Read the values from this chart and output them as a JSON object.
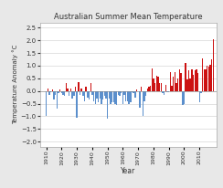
{
  "title": "Australian Summer Mean Temperature",
  "xlabel": "Year",
  "ylabel": "Temperature Anomaly °C",
  "ylim": [
    -2.2,
    2.7
  ],
  "yticks": [
    -2.0,
    -1.5,
    -1.0,
    -0.5,
    0.0,
    0.5,
    1.0,
    1.5,
    2.0,
    2.5
  ],
  "xtick_years": [
    1910,
    1920,
    1930,
    1940,
    1950,
    1960,
    1970,
    1980,
    1990,
    2000,
    2010
  ],
  "figure_bg": "#e8e8e8",
  "plot_bg": "#ffffff",
  "color_positive": "#cc1111",
  "color_negative": "#5b8fcc",
  "years": [
    1910,
    1911,
    1912,
    1913,
    1914,
    1915,
    1916,
    1917,
    1918,
    1919,
    1920,
    1921,
    1922,
    1923,
    1924,
    1925,
    1926,
    1927,
    1928,
    1929,
    1930,
    1931,
    1932,
    1933,
    1934,
    1935,
    1936,
    1937,
    1938,
    1939,
    1940,
    1941,
    1942,
    1943,
    1944,
    1945,
    1946,
    1947,
    1948,
    1949,
    1950,
    1951,
    1952,
    1953,
    1954,
    1955,
    1956,
    1957,
    1958,
    1959,
    1960,
    1961,
    1962,
    1963,
    1964,
    1965,
    1966,
    1967,
    1968,
    1969,
    1970,
    1971,
    1972,
    1973,
    1974,
    1975,
    1976,
    1977,
    1978,
    1979,
    1980,
    1981,
    1982,
    1983,
    1984,
    1985,
    1986,
    1987,
    1988,
    1989,
    1990,
    1991,
    1992,
    1993,
    1994,
    1995,
    1996,
    1997,
    1998,
    1999,
    2000,
    2001,
    2002,
    2003,
    2004,
    2005,
    2006,
    2007,
    2008,
    2009,
    2010,
    2011,
    2012,
    2013,
    2014,
    2015,
    2016,
    2017,
    2018,
    2019
  ],
  "values": [
    -1.0,
    0.1,
    -0.15,
    -0.05,
    0.05,
    -0.35,
    -0.15,
    -0.7,
    -0.1,
    0.05,
    -0.1,
    -0.15,
    -0.2,
    0.3,
    0.1,
    -0.2,
    0.1,
    -0.3,
    -0.2,
    0.15,
    -1.05,
    0.35,
    -0.15,
    0.1,
    -0.2,
    -0.4,
    0.15,
    -0.25,
    -0.35,
    0.3,
    -0.15,
    -0.4,
    -0.5,
    -0.3,
    -0.45,
    -0.3,
    -0.5,
    -0.35,
    -0.2,
    -0.3,
    -1.1,
    -0.3,
    -0.5,
    -0.45,
    -0.45,
    -0.5,
    -0.55,
    -0.15,
    -0.2,
    -0.1,
    -0.5,
    -0.15,
    -0.4,
    -0.4,
    -0.5,
    -0.45,
    -0.05,
    -0.1,
    -0.25,
    0.05,
    0.0,
    -0.65,
    0.15,
    -1.0,
    -0.4,
    -0.2,
    0.1,
    0.15,
    0.2,
    0.9,
    0.5,
    0.3,
    0.6,
    0.55,
    0.3,
    0.3,
    -0.1,
    -0.15,
    0.25,
    -0.05,
    -0.05,
    0.75,
    0.2,
    0.55,
    0.75,
    0.3,
    0.5,
    0.85,
    0.7,
    -0.55,
    -0.5,
    1.1,
    0.45,
    0.8,
    0.5,
    0.85,
    0.65,
    0.8,
    0.85,
    0.7,
    -0.45,
    -0.1,
    1.3,
    0.85,
    0.85,
    1.0,
    0.95,
    1.05,
    1.25,
    2.05
  ]
}
